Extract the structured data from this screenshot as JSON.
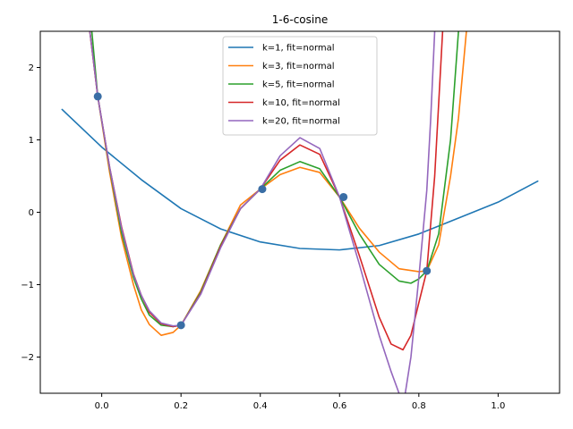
{
  "chart_data": {
    "type": "line",
    "title": "1-6-cosine",
    "xlabel": "",
    "ylabel": "",
    "xlim": [
      -0.155,
      1.155
    ],
    "ylim": [
      -2.5,
      2.5
    ],
    "xticks": [
      0.0,
      0.2,
      0.4,
      0.6,
      0.8,
      1.0
    ],
    "xtick_labels": [
      "0.0",
      "0.2",
      "0.4",
      "0.6",
      "0.8",
      "1.0"
    ],
    "yticks": [
      -2,
      -1,
      0,
      1,
      2
    ],
    "ytick_labels": [
      "−2",
      "−1",
      "0",
      "1",
      "2"
    ],
    "grid": false,
    "legend_position": "top-center",
    "points": {
      "x": [
        -0.01,
        0.2,
        0.405,
        0.61,
        0.82
      ],
      "y": [
        1.6,
        -1.56,
        0.32,
        0.21,
        -0.81
      ],
      "color": "#3a6ea5"
    },
    "series": [
      {
        "name": "k=1, fit=normal",
        "color": "#1f77b4",
        "x": [
          -0.1,
          0.0,
          0.1,
          0.2,
          0.3,
          0.4,
          0.5,
          0.6,
          0.7,
          0.8,
          0.9,
          1.0,
          1.1
        ],
        "y": [
          1.42,
          0.9,
          0.45,
          0.05,
          -0.23,
          -0.41,
          -0.5,
          -0.52,
          -0.46,
          -0.3,
          -0.08,
          0.14,
          0.43
        ]
      },
      {
        "name": "k=3, fit=normal",
        "color": "#ff7f0e",
        "x": [
          -0.03,
          -0.01,
          0.02,
          0.05,
          0.08,
          0.1,
          0.12,
          0.15,
          0.18,
          0.2,
          0.25,
          0.3,
          0.35,
          0.4,
          0.45,
          0.5,
          0.55,
          0.6,
          0.65,
          0.7,
          0.75,
          0.8,
          0.82,
          0.85,
          0.88,
          0.9,
          0.92
        ],
        "y": [
          2.5,
          1.6,
          0.55,
          -0.35,
          -1.0,
          -1.35,
          -1.55,
          -1.7,
          -1.66,
          -1.56,
          -1.08,
          -0.45,
          0.1,
          0.32,
          0.52,
          0.62,
          0.55,
          0.21,
          -0.22,
          -0.55,
          -0.78,
          -0.82,
          -0.81,
          -0.45,
          0.5,
          1.3,
          2.5
        ]
      },
      {
        "name": "k=5, fit=normal",
        "color": "#2ca02c",
        "x": [
          -0.025,
          -0.01,
          0.02,
          0.05,
          0.08,
          0.1,
          0.12,
          0.15,
          0.18,
          0.2,
          0.25,
          0.3,
          0.35,
          0.4,
          0.45,
          0.5,
          0.55,
          0.6,
          0.65,
          0.7,
          0.75,
          0.78,
          0.8,
          0.82,
          0.85,
          0.88,
          0.9
        ],
        "y": [
          2.5,
          1.6,
          0.6,
          -0.28,
          -0.9,
          -1.2,
          -1.42,
          -1.56,
          -1.58,
          -1.56,
          -1.1,
          -0.45,
          0.05,
          0.32,
          0.58,
          0.7,
          0.6,
          0.21,
          -0.3,
          -0.72,
          -0.95,
          -0.98,
          -0.92,
          -0.81,
          -0.3,
          1.0,
          2.5
        ]
      },
      {
        "name": "k=10, fit=normal",
        "color": "#d62728",
        "x": [
          -0.03,
          -0.01,
          0.02,
          0.05,
          0.08,
          0.1,
          0.12,
          0.15,
          0.18,
          0.2,
          0.25,
          0.3,
          0.35,
          0.4,
          0.45,
          0.5,
          0.55,
          0.6,
          0.65,
          0.7,
          0.73,
          0.76,
          0.78,
          0.8,
          0.82,
          0.84,
          0.85,
          0.86
        ],
        "y": [
          2.5,
          1.6,
          0.62,
          -0.2,
          -0.85,
          -1.15,
          -1.38,
          -1.54,
          -1.58,
          -1.56,
          -1.12,
          -0.47,
          0.05,
          0.32,
          0.72,
          0.93,
          0.8,
          0.21,
          -0.6,
          -1.45,
          -1.82,
          -1.9,
          -1.7,
          -1.25,
          -0.81,
          0.5,
          1.5,
          2.5
        ]
      },
      {
        "name": "k=20, fit=normal",
        "color": "#9467bd",
        "x": [
          -0.03,
          -0.01,
          0.02,
          0.05,
          0.08,
          0.1,
          0.12,
          0.15,
          0.18,
          0.2,
          0.25,
          0.3,
          0.35,
          0.4,
          0.45,
          0.5,
          0.55,
          0.6,
          0.65,
          0.7,
          0.73,
          0.75,
          0.76,
          0.78,
          0.8,
          0.82,
          0.83,
          0.84
        ],
        "y": [
          2.5,
          1.6,
          0.62,
          -0.22,
          -0.86,
          -1.15,
          -1.36,
          -1.53,
          -1.57,
          -1.56,
          -1.13,
          -0.49,
          0.05,
          0.32,
          0.78,
          1.03,
          0.88,
          0.21,
          -0.72,
          -1.7,
          -2.2,
          -2.5,
          -2.7,
          -2.0,
          -0.9,
          0.3,
          1.3,
          2.5
        ]
      }
    ]
  }
}
